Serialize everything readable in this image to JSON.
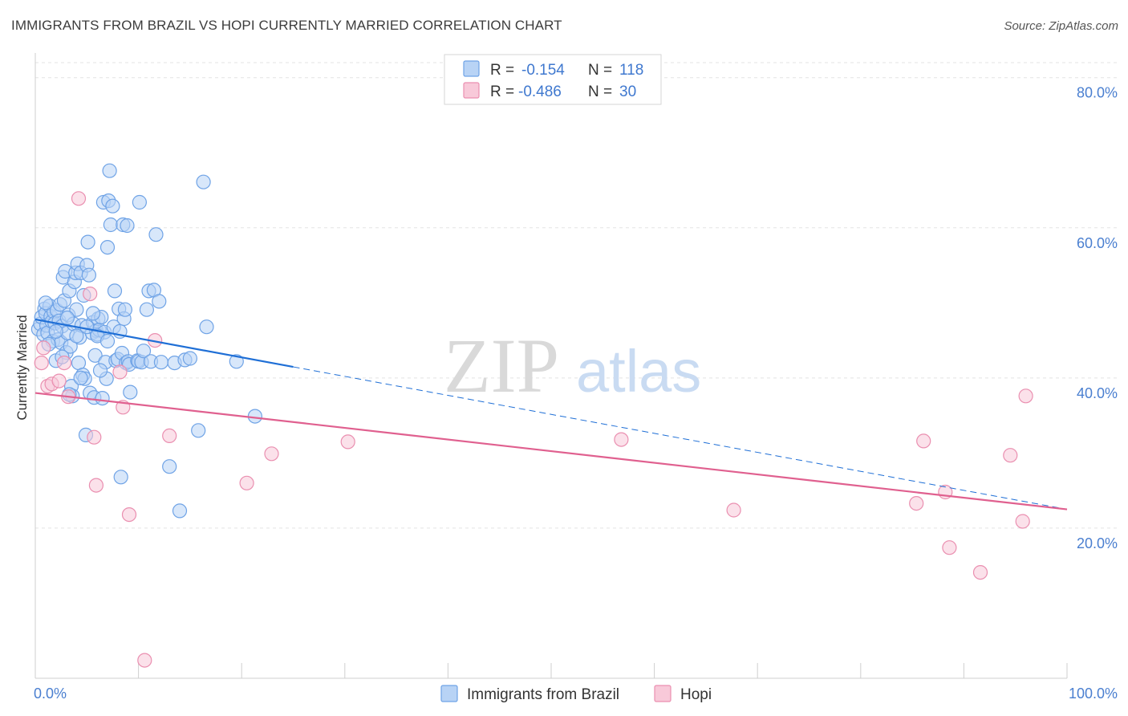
{
  "title": "IMMIGRANTS FROM BRAZIL VS HOPI CURRENTLY MARRIED CORRELATION CHART",
  "source": "Source: ZipAtlas.com",
  "watermark": {
    "zip": "ZIP",
    "atlas": "atlas"
  },
  "colors": {
    "blue": "#6fa3e6",
    "blue_fill": "#b8d3f5",
    "blue_line": "#1f6fd6",
    "pink": "#ea8fb0",
    "pink_fill": "#f8c9d9",
    "pink_line": "#e0608f"
  },
  "legend": {
    "rows": [
      {
        "r_label": "R =",
        "r_value": "-0.154",
        "n_label": "N =",
        "n_value": "118"
      },
      {
        "r_label": "R =",
        "r_value": "-0.486",
        "n_label": "N =",
        "n_value": "30"
      }
    ]
  },
  "chart_data": {
    "type": "scatter",
    "ylabel": "Currently Married",
    "x_tick_labels": [
      "0.0%",
      "100.0%"
    ],
    "y_tick_labels": [
      "20.0%",
      "40.0%",
      "60.0%",
      "80.0%"
    ],
    "y_ticks": [
      20,
      40,
      60,
      80
    ],
    "xlim": [
      0,
      100
    ],
    "ylim": [
      0,
      82
    ],
    "grid": true,
    "legend_position": "top-center",
    "series": [
      {
        "name": "Immigrants from Brazil",
        "color": "#6fa3e6",
        "trend": {
          "x_start": 0,
          "y_start": 47.8,
          "x_solid_end": 25,
          "x_end": 100,
          "y_end": 22.5
        },
        "points": [
          [
            0.3,
            46.5
          ],
          [
            0.5,
            47.2
          ],
          [
            0.6,
            48.1
          ],
          [
            0.8,
            45.8
          ],
          [
            0.9,
            49.2
          ],
          [
            1.0,
            48.6
          ],
          [
            1.1,
            47.0
          ],
          [
            1.2,
            46.0
          ],
          [
            1.4,
            49.6
          ],
          [
            1.5,
            48.2
          ],
          [
            1.6,
            47.5
          ],
          [
            1.7,
            44.9
          ],
          [
            1.8,
            48.8
          ],
          [
            1.9,
            47.3
          ],
          [
            2.0,
            42.3
          ],
          [
            2.1,
            49.0
          ],
          [
            2.2,
            45.1
          ],
          [
            2.3,
            47.6
          ],
          [
            2.4,
            49.8
          ],
          [
            2.5,
            44.7
          ],
          [
            2.6,
            46.9
          ],
          [
            2.7,
            53.4
          ],
          [
            2.8,
            50.3
          ],
          [
            2.9,
            54.2
          ],
          [
            3.0,
            43.4
          ],
          [
            3.1,
            46.0
          ],
          [
            3.2,
            48.4
          ],
          [
            3.3,
            51.6
          ],
          [
            3.4,
            44.2
          ],
          [
            3.5,
            38.9
          ],
          [
            3.6,
            37.6
          ],
          [
            3.7,
            47.2
          ],
          [
            3.8,
            52.8
          ],
          [
            3.9,
            54.0
          ],
          [
            4.0,
            49.1
          ],
          [
            4.1,
            55.2
          ],
          [
            4.2,
            42.0
          ],
          [
            4.3,
            45.4
          ],
          [
            4.4,
            54.0
          ],
          [
            4.5,
            47.0
          ],
          [
            4.6,
            40.4
          ],
          [
            4.7,
            51.0
          ],
          [
            4.8,
            39.9
          ],
          [
            4.9,
            32.4
          ],
          [
            5.0,
            55.0
          ],
          [
            5.1,
            58.1
          ],
          [
            5.2,
            53.7
          ],
          [
            5.3,
            38.0
          ],
          [
            5.5,
            46.0
          ],
          [
            5.6,
            47.4
          ],
          [
            5.7,
            37.4
          ],
          [
            5.8,
            43.0
          ],
          [
            5.9,
            46.3
          ],
          [
            6.0,
            45.8
          ],
          [
            6.1,
            47.9
          ],
          [
            6.2,
            46.4
          ],
          [
            6.4,
            48.1
          ],
          [
            6.5,
            37.3
          ],
          [
            6.6,
            63.4
          ],
          [
            6.7,
            46.1
          ],
          [
            6.8,
            42.1
          ],
          [
            6.9,
            39.9
          ],
          [
            7.0,
            57.4
          ],
          [
            7.1,
            63.6
          ],
          [
            7.2,
            67.6
          ],
          [
            7.3,
            60.4
          ],
          [
            7.5,
            62.9
          ],
          [
            7.6,
            46.8
          ],
          [
            7.7,
            51.6
          ],
          [
            7.8,
            42.3
          ],
          [
            8.0,
            42.5
          ],
          [
            8.1,
            49.2
          ],
          [
            8.2,
            46.2
          ],
          [
            8.3,
            26.8
          ],
          [
            8.4,
            43.3
          ],
          [
            8.5,
            60.4
          ],
          [
            8.6,
            47.9
          ],
          [
            8.7,
            49.1
          ],
          [
            8.8,
            42.0
          ],
          [
            8.9,
            60.3
          ],
          [
            9.0,
            42.2
          ],
          [
            9.1,
            41.8
          ],
          [
            9.2,
            38.1
          ],
          [
            9.9,
            42.3
          ],
          [
            10.0,
            42.2
          ],
          [
            10.1,
            63.4
          ],
          [
            10.3,
            42.1
          ],
          [
            10.5,
            43.6
          ],
          [
            10.8,
            49.1
          ],
          [
            11.0,
            51.6
          ],
          [
            11.2,
            42.2
          ],
          [
            11.5,
            51.7
          ],
          [
            11.7,
            59.1
          ],
          [
            12.0,
            50.2
          ],
          [
            12.2,
            42.1
          ],
          [
            13.0,
            28.2
          ],
          [
            13.5,
            42.0
          ],
          [
            14.0,
            22.3
          ],
          [
            14.5,
            42.4
          ],
          [
            15.0,
            42.6
          ],
          [
            15.8,
            33.0
          ],
          [
            16.3,
            66.1
          ],
          [
            16.6,
            46.8
          ],
          [
            19.5,
            42.2
          ],
          [
            21.3,
            34.9
          ],
          [
            1.3,
            44.5
          ],
          [
            2.0,
            46.2
          ],
          [
            3.1,
            48.0
          ],
          [
            4.0,
            45.6
          ],
          [
            5.0,
            46.8
          ],
          [
            6.0,
            45.6
          ],
          [
            7.0,
            44.9
          ],
          [
            1.0,
            50.0
          ],
          [
            2.6,
            42.8
          ],
          [
            3.3,
            37.8
          ],
          [
            4.4,
            40.0
          ],
          [
            5.6,
            48.6
          ],
          [
            6.3,
            41.0
          ]
        ]
      },
      {
        "name": "Hopi",
        "color": "#ea8fb0",
        "trend": {
          "x_start": 0,
          "y_start": 38.0,
          "x_end": 100,
          "y_end": 22.5
        },
        "points": [
          [
            0.6,
            42.0
          ],
          [
            0.8,
            44.0
          ],
          [
            1.2,
            38.9
          ],
          [
            1.6,
            39.2
          ],
          [
            2.3,
            39.6
          ],
          [
            2.8,
            42.0
          ],
          [
            3.2,
            37.5
          ],
          [
            4.2,
            63.9
          ],
          [
            5.3,
            51.2
          ],
          [
            5.7,
            32.1
          ],
          [
            5.9,
            25.7
          ],
          [
            8.2,
            40.8
          ],
          [
            8.5,
            36.1
          ],
          [
            9.1,
            21.8
          ],
          [
            10.6,
            2.4
          ],
          [
            11.6,
            45.0
          ],
          [
            13.0,
            32.3
          ],
          [
            20.5,
            26.0
          ],
          [
            22.9,
            29.9
          ],
          [
            30.3,
            31.5
          ],
          [
            56.8,
            31.8
          ],
          [
            67.7,
            22.4
          ],
          [
            85.4,
            23.3
          ],
          [
            86.1,
            31.6
          ],
          [
            88.2,
            24.8
          ],
          [
            88.6,
            17.4
          ],
          [
            91.6,
            14.1
          ],
          [
            94.5,
            29.7
          ],
          [
            95.7,
            20.9
          ],
          [
            96.0,
            37.6
          ]
        ]
      }
    ]
  }
}
